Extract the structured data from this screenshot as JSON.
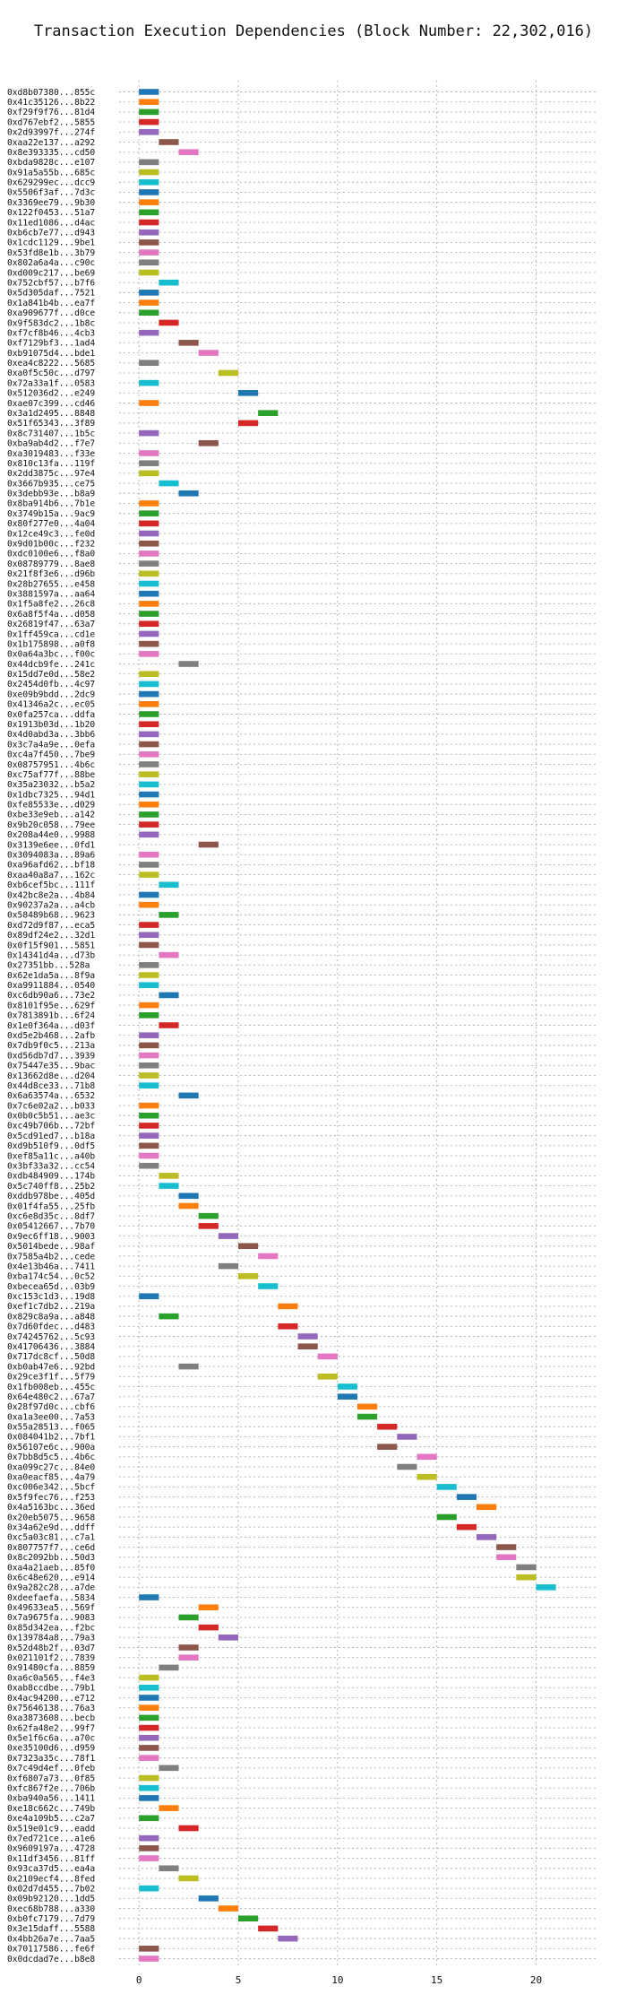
{
  "chart_data": {
    "type": "bar",
    "orientation": "horizontal-gantt",
    "title": "Transaction Execution Dependencies (Block Number: 22,302,016)",
    "xlabel": "",
    "ylabel": "",
    "xlim": [
      -1,
      23
    ],
    "xticks": [
      0,
      5,
      10,
      15,
      20
    ],
    "xtick_labels": [
      "0",
      "5",
      "10",
      "15",
      "20"
    ],
    "grid": true,
    "bar_width": 1,
    "colors": [
      "#1f77b4",
      "#ff7f0e",
      "#2ca02c",
      "#d62728",
      "#9467bd",
      "#8c564b",
      "#e377c2",
      "#7f7f7f",
      "#bcbd22",
      "#17becf"
    ],
    "transactions": [
      {
        "label": "0xd8b07380...855c",
        "start": 0
      },
      {
        "label": "0x41c35126...8b22",
        "start": 0
      },
      {
        "label": "0xf29f9f76...81d4",
        "start": 0
      },
      {
        "label": "0xd767ebf2...5855",
        "start": 0
      },
      {
        "label": "0x2d93997f...274f",
        "start": 0
      },
      {
        "label": "0xaa22e137...a292",
        "start": 1
      },
      {
        "label": "0x8e393335...cd50",
        "start": 2
      },
      {
        "label": "0xbda9828c...e107",
        "start": 0
      },
      {
        "label": "0x91a5a55b...685c",
        "start": 0
      },
      {
        "label": "0x629299ec...dcc9",
        "start": 0
      },
      {
        "label": "0x5506f3af...7d3c",
        "start": 0
      },
      {
        "label": "0x3369ee79...9b30",
        "start": 0
      },
      {
        "label": "0x122f0453...51a7",
        "start": 0
      },
      {
        "label": "0x11ed1086...d4ac",
        "start": 0
      },
      {
        "label": "0xb6cb7e77...d943",
        "start": 0
      },
      {
        "label": "0x1cdc1129...9be1",
        "start": 0
      },
      {
        "label": "0x53fd8e1b...3b79",
        "start": 0
      },
      {
        "label": "0x802a6a4a...c90c",
        "start": 0
      },
      {
        "label": "0xd009c217...be69",
        "start": 0
      },
      {
        "label": "0x752cbf57...b7f6",
        "start": 1
      },
      {
        "label": "0x5d305daf...7521",
        "start": 0
      },
      {
        "label": "0x1a841b4b...ea7f",
        "start": 0
      },
      {
        "label": "0xa909677f...d0ce",
        "start": 0
      },
      {
        "label": "0x9f583dc2...1b8c",
        "start": 1
      },
      {
        "label": "0xf7cf8b46...4cb3",
        "start": 0
      },
      {
        "label": "0xf7129bf3...1ad4",
        "start": 2
      },
      {
        "label": "0xb91075d4...bde1",
        "start": 3
      },
      {
        "label": "0xea4c8222...5685",
        "start": 0
      },
      {
        "label": "0xa0f5c50c...d797",
        "start": 4
      },
      {
        "label": "0x72a33a1f...0583",
        "start": 0
      },
      {
        "label": "0x512036d2...e249",
        "start": 5
      },
      {
        "label": "0xae07c399...cd46",
        "start": 0
      },
      {
        "label": "0x3a1d2495...8848",
        "start": 6
      },
      {
        "label": "0x51f65343...3f89",
        "start": 5
      },
      {
        "label": "0x8c731407...1b5c",
        "start": 0
      },
      {
        "label": "0xba9ab4d2...f7e7",
        "start": 3
      },
      {
        "label": "0xa3019483...f33e",
        "start": 0
      },
      {
        "label": "0x810c13fa...119f",
        "start": 0
      },
      {
        "label": "0x2dd3875c...97e4",
        "start": 0
      },
      {
        "label": "0x3667b935...ce75",
        "start": 1
      },
      {
        "label": "0x3debb93e...b8a9",
        "start": 2
      },
      {
        "label": "0x8ba914b6...7b1e",
        "start": 0
      },
      {
        "label": "0x3749b15a...9ac9",
        "start": 0
      },
      {
        "label": "0x80f277e0...4a04",
        "start": 0
      },
      {
        "label": "0x12ce49c3...fe0d",
        "start": 0
      },
      {
        "label": "0x9d01b00c...f232",
        "start": 0
      },
      {
        "label": "0xdc0100e6...f8a0",
        "start": 0
      },
      {
        "label": "0x08789779...8ae8",
        "start": 0
      },
      {
        "label": "0x21f8f3e6...d96b",
        "start": 0
      },
      {
        "label": "0x28b27655...e458",
        "start": 0
      },
      {
        "label": "0x3881597a...aa64",
        "start": 0
      },
      {
        "label": "0x1f5a8fe2...26c8",
        "start": 0
      },
      {
        "label": "0x6a8f5f4a...d058",
        "start": 0
      },
      {
        "label": "0x26819f47...63a7",
        "start": 0
      },
      {
        "label": "0x1ff459ca...cd1e",
        "start": 0
      },
      {
        "label": "0x1b175898...a0f8",
        "start": 0
      },
      {
        "label": "0x0a64a3bc...f00c",
        "start": 0
      },
      {
        "label": "0x44dcb9fe...241c",
        "start": 2
      },
      {
        "label": "0x15dd7e0d...58e2",
        "start": 0
      },
      {
        "label": "0x2454d0fb...4c97",
        "start": 0
      },
      {
        "label": "0xe09b9bdd...2dc9",
        "start": 0
      },
      {
        "label": "0x41346a2c...ec05",
        "start": 0
      },
      {
        "label": "0x0fa257ca...ddfa",
        "start": 0
      },
      {
        "label": "0x1913b03d...1b20",
        "start": 0
      },
      {
        "label": "0x4d0abd3a...3bb6",
        "start": 0
      },
      {
        "label": "0x3c7a4a9e...0efa",
        "start": 0
      },
      {
        "label": "0xc4a7f450...7be9",
        "start": 0
      },
      {
        "label": "0x08757951...4b6c",
        "start": 0
      },
      {
        "label": "0xc75af77f...88be",
        "start": 0
      },
      {
        "label": "0x35a23032...b5a2",
        "start": 0
      },
      {
        "label": "0x1dbc7325...94d1",
        "start": 0
      },
      {
        "label": "0xfe85533e...d029",
        "start": 0
      },
      {
        "label": "0xbe33e9eb...a142",
        "start": 0
      },
      {
        "label": "0x9b20c058...79ee",
        "start": 0
      },
      {
        "label": "0x208a44e0...9988",
        "start": 0
      },
      {
        "label": "0x3139e6ee...0fd1",
        "start": 3
      },
      {
        "label": "0x3094083a...89a6",
        "start": 0
      },
      {
        "label": "0xa96afd62...bf18",
        "start": 0
      },
      {
        "label": "0xaa40a8a7...162c",
        "start": 0
      },
      {
        "label": "0xb6cef5bc...111f",
        "start": 1
      },
      {
        "label": "0x42bc8e2a...4b84",
        "start": 0
      },
      {
        "label": "0x90237a2a...a4cb",
        "start": 0
      },
      {
        "label": "0x58489b68...9623",
        "start": 1
      },
      {
        "label": "0xd72d9f87...eca5",
        "start": 0
      },
      {
        "label": "0x89df24e2...32d1",
        "start": 0
      },
      {
        "label": "0x0f15f901...5851",
        "start": 0
      },
      {
        "label": "0x14341d4a...d73b",
        "start": 1
      },
      {
        "label": "0x27351bb...528a",
        "start": 0
      },
      {
        "label": "0x62e1da5a...8f9a",
        "start": 0
      },
      {
        "label": "0xa9911884...0540",
        "start": 0
      },
      {
        "label": "0xc6db90a6...73e2",
        "start": 1
      },
      {
        "label": "0x8101f95e...629f",
        "start": 0
      },
      {
        "label": "0x7813891b...6f24",
        "start": 0
      },
      {
        "label": "0x1e0f364a...d03f",
        "start": 1
      },
      {
        "label": "0xd5e2b468...2afb",
        "start": 0
      },
      {
        "label": "0x7db9f0c5...213a",
        "start": 0
      },
      {
        "label": "0xd56db7d7...3939",
        "start": 0
      },
      {
        "label": "0x75447e35...9bac",
        "start": 0
      },
      {
        "label": "0x13662d8e...d204",
        "start": 0
      },
      {
        "label": "0x44d8ce33...71b8",
        "start": 0
      },
      {
        "label": "0x6a63574a...6532",
        "start": 2
      },
      {
        "label": "0x7c6e02a2...b033",
        "start": 0
      },
      {
        "label": "0x0b0c5b51...ae3c",
        "start": 0
      },
      {
        "label": "0xc49b706b...72bf",
        "start": 0
      },
      {
        "label": "0x5cd91ed7...b18a",
        "start": 0
      },
      {
        "label": "0xd9b510f9...0df5",
        "start": 0
      },
      {
        "label": "0xef85a11c...a40b",
        "start": 0
      },
      {
        "label": "0x3bf33a32...cc54",
        "start": 0
      },
      {
        "label": "0xdb484909...174b",
        "start": 1
      },
      {
        "label": "0x5c740ff8...25b2",
        "start": 1
      },
      {
        "label": "0xddb978be...405d",
        "start": 2
      },
      {
        "label": "0x01f4fa55...25fb",
        "start": 2
      },
      {
        "label": "0xc6e8d35c...8df7",
        "start": 3
      },
      {
        "label": "0x05412667...7b70",
        "start": 3
      },
      {
        "label": "0x9ec6ff18...9003",
        "start": 4
      },
      {
        "label": "0x5014bede...98af",
        "start": 5
      },
      {
        "label": "0x7585a4b2...cede",
        "start": 6
      },
      {
        "label": "0x4e13b46a...7411",
        "start": 4
      },
      {
        "label": "0xba174c54...0c52",
        "start": 5
      },
      {
        "label": "0xbecea65d...03b9",
        "start": 6
      },
      {
        "label": "0xc153c1d3...19d8",
        "start": 0
      },
      {
        "label": "0xef1c7db2...219a",
        "start": 7
      },
      {
        "label": "0x829c8a9a...a848",
        "start": 1
      },
      {
        "label": "0x7d60fdec...d483",
        "start": 7
      },
      {
        "label": "0x74245762...5c93",
        "start": 8
      },
      {
        "label": "0x41706436...3884",
        "start": 8
      },
      {
        "label": "0x717dc8cf...50d8",
        "start": 9
      },
      {
        "label": "0xb0ab47e6...92bd",
        "start": 2
      },
      {
        "label": "0x29ce3f1f...5f79",
        "start": 9
      },
      {
        "label": "0x1fb008eb...455c",
        "start": 10
      },
      {
        "label": "0x64e480c2...67a7",
        "start": 10
      },
      {
        "label": "0x28f97d0c...cbf6",
        "start": 11
      },
      {
        "label": "0xa1a3ee00...7a53",
        "start": 11
      },
      {
        "label": "0x55a28513...f065",
        "start": 12
      },
      {
        "label": "0x084041b2...7bf1",
        "start": 13
      },
      {
        "label": "0x56107e6c...900a",
        "start": 12
      },
      {
        "label": "0x7bb8d5c5...4b6c",
        "start": 14
      },
      {
        "label": "0xa099c27c...84e0",
        "start": 13
      },
      {
        "label": "0xa0eacf85...4a79",
        "start": 14
      },
      {
        "label": "0xc006e342...5bcf",
        "start": 15
      },
      {
        "label": "0x5f9fec76...f253",
        "start": 16
      },
      {
        "label": "0x4a5163bc...36ed",
        "start": 17
      },
      {
        "label": "0x20eb5075...9658",
        "start": 15
      },
      {
        "label": "0x34a62e9d...ddff",
        "start": 16
      },
      {
        "label": "0xc5a03c81...c7a1",
        "start": 17
      },
      {
        "label": "0x807757f7...ce6d",
        "start": 18
      },
      {
        "label": "0x8c2092bb...50d3",
        "start": 18
      },
      {
        "label": "0xa4a21aeb...85f0",
        "start": 19
      },
      {
        "label": "0x6c48e620...e914",
        "start": 19
      },
      {
        "label": "0x9a282c28...a7de",
        "start": 20
      },
      {
        "label": "0xdeefaefa...5834",
        "start": 0
      },
      {
        "label": "0x49633ea5...569f",
        "start": 3
      },
      {
        "label": "0x7a9675fa...9083",
        "start": 2
      },
      {
        "label": "0x85d342ea...f2bc",
        "start": 3
      },
      {
        "label": "0x139784a8...79a3",
        "start": 4
      },
      {
        "label": "0x52d48b2f...03d7",
        "start": 2
      },
      {
        "label": "0x021101f2...7839",
        "start": 2
      },
      {
        "label": "0x91480cfa...8859",
        "start": 1
      },
      {
        "label": "0xa6c0a565...f4e3",
        "start": 0
      },
      {
        "label": "0xab8ccdbe...79b1",
        "start": 0
      },
      {
        "label": "0x4ac94200...e712",
        "start": 0
      },
      {
        "label": "0x75646138...76a3",
        "start": 0
      },
      {
        "label": "0xa3873608...becb",
        "start": 0
      },
      {
        "label": "0x62fa48e2...99f7",
        "start": 0
      },
      {
        "label": "0x5e1f6c6a...a70c",
        "start": 0
      },
      {
        "label": "0xe35100d6...d959",
        "start": 0
      },
      {
        "label": "0x7323a35c...78f1",
        "start": 0
      },
      {
        "label": "0x7c49d4ef...0feb",
        "start": 1
      },
      {
        "label": "0xf6807a73...0f85",
        "start": 0
      },
      {
        "label": "0xfc867f2e...706b",
        "start": 0
      },
      {
        "label": "0xba940a56...1411",
        "start": 0
      },
      {
        "label": "0xe18c662c...749b",
        "start": 1
      },
      {
        "label": "0xe4a109b5...c2a7",
        "start": 0
      },
      {
        "label": "0x519e01c9...eadd",
        "start": 2
      },
      {
        "label": "0x7ed721ce...a1e6",
        "start": 0
      },
      {
        "label": "0x9609197a...4728",
        "start": 0
      },
      {
        "label": "0x11df3456...81ff",
        "start": 0
      },
      {
        "label": "0x93ca37d5...ea4a",
        "start": 1
      },
      {
        "label": "0x2109ecf4...8fed",
        "start": 2
      },
      {
        "label": "0x02d7d455...7b02",
        "start": 0
      },
      {
        "label": "0x09b92120...1dd5",
        "start": 3
      },
      {
        "label": "0xec68b788...a330",
        "start": 4
      },
      {
        "label": "0xb0fc7179...7d79",
        "start": 5
      },
      {
        "label": "0x3e15daff...5588",
        "start": 6
      },
      {
        "label": "0x4bb26a7e...7aa5",
        "start": 7
      },
      {
        "label": "0x70117586...fe6f",
        "start": 0
      },
      {
        "label": "0x0dcdad7e...b8e8",
        "start": 0
      }
    ]
  }
}
